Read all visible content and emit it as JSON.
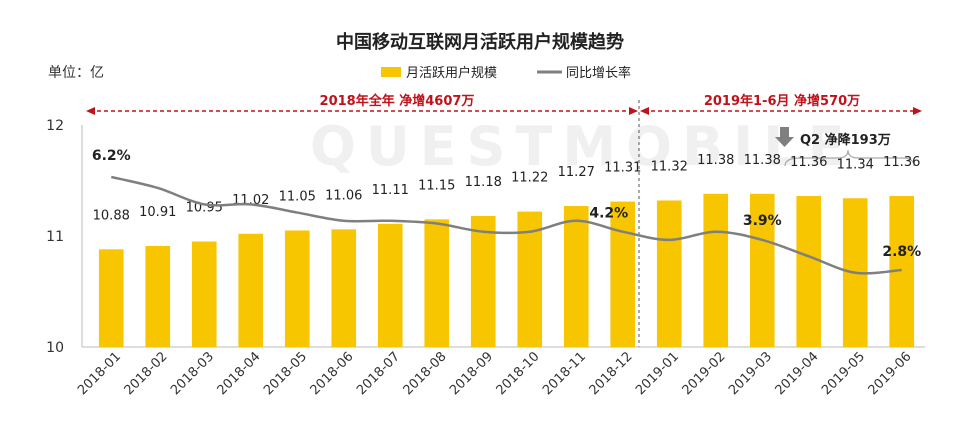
{
  "chart_data": {
    "type": "bar",
    "title": "中国移动互联网月活跃用户规模趋势",
    "unit_label": "单位：亿",
    "watermark": "QUESTMOBILE",
    "categories": [
      "2018-01",
      "2018-02",
      "2018-03",
      "2018-04",
      "2018-05",
      "2018-06",
      "2018-07",
      "2018-08",
      "2018-09",
      "2018-10",
      "2018-11",
      "2018-12",
      "2019-01",
      "2019-02",
      "2019-03",
      "2019-04",
      "2019-05",
      "2019-06"
    ],
    "ylim": [
      10,
      12
    ],
    "yticks": [
      "10",
      "11",
      "12"
    ],
    "series": [
      {
        "name": "月活跃用户规模",
        "type": "bar",
        "color": "#f7c600",
        "values": [
          10.88,
          10.91,
          10.95,
          11.02,
          11.05,
          11.06,
          11.11,
          11.15,
          11.18,
          11.22,
          11.27,
          11.31,
          11.32,
          11.38,
          11.38,
          11.36,
          11.34,
          11.36
        ]
      },
      {
        "name": "同比增长率",
        "type": "line",
        "color": "#7f7f7f",
        "values_pct": [
          6.2,
          5.8,
          5.2,
          5.2,
          4.9,
          4.6,
          4.6,
          4.5,
          4.2,
          4.2,
          4.6,
          4.2,
          3.9,
          4.2,
          3.9,
          3.3,
          2.7,
          2.8
        ]
      }
    ],
    "growth_labels": [
      {
        "index": 0,
        "text": "6.2%"
      },
      {
        "index": 11,
        "text": "4.2%"
      },
      {
        "index": 14,
        "text": "3.9%"
      },
      {
        "index": 17,
        "text": "2.8%"
      }
    ],
    "annotations": {
      "range_2018": "2018年全年  净增4607万",
      "range_2019": "2019年1-6月  净增570万",
      "q2_note": "Q2 净降193万"
    },
    "grid": false,
    "legend_position": "top-center"
  }
}
